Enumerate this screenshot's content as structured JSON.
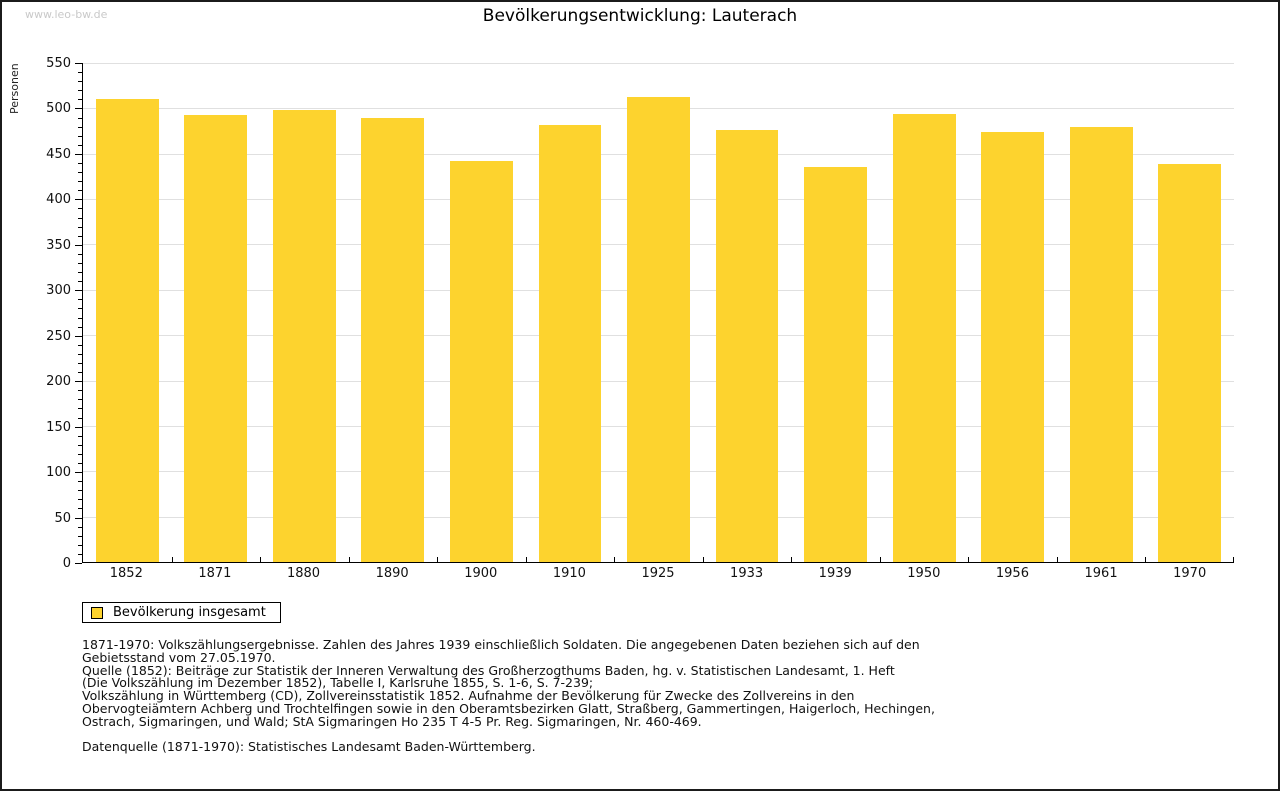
{
  "page": {
    "watermark": "www.leo-bw.de",
    "title": "Bevölkerungsentwicklung: Lauterach"
  },
  "chart_data": {
    "type": "bar",
    "title": "Bevölkerungsentwicklung: Lauterach",
    "xlabel": "",
    "ylabel": "Personen",
    "ylim": [
      0,
      550
    ],
    "y_tick_step": 50,
    "y_minor_tick_step": 10,
    "grid": true,
    "legend_position": "bottom-left",
    "bar_color": "#FDD32E",
    "categories": [
      "1852",
      "1871",
      "1880",
      "1890",
      "1900",
      "1910",
      "1925",
      "1933",
      "1939",
      "1950",
      "1956",
      "1961",
      "1970"
    ],
    "series": [
      {
        "name": "Bevölkerung insgesamt",
        "values": [
          510,
          493,
          498,
          489,
          442,
          482,
          512,
          476,
          435,
          494,
          474,
          480,
          439
        ]
      }
    ]
  },
  "legend": {
    "label": "Bevölkerung insgesamt",
    "swatch_color": "#FDD32E"
  },
  "footer": {
    "lines": [
      "1871-1970: Volkszählungsergebnisse. Zahlen des Jahres 1939 einschließlich Soldaten. Die angegebenen Daten beziehen sich auf den",
      "Gebietsstand vom 27.05.1970.",
      "Quelle (1852): Beiträge zur Statistik der Inneren Verwaltung des Großherzogthums Baden, hg. v. Statistischen Landesamt, 1. Heft",
      "(Die Volkszählung im Dezember 1852), Tabelle I, Karlsruhe 1855, S. 1-6, S. 7-239;",
      "Volkszählung in Württemberg (CD), Zollvereinsstatistik 1852. Aufnahme der Bevölkerung für Zwecke des Zollvereins in den",
      "Obervogteiämtern Achberg und Trochtelfingen sowie in den Oberamtsbezirken Glatt, Straßberg, Gammertingen, Haigerloch, Hechingen,",
      "Ostrach, Sigmaringen, und Wald; StA Sigmaringen Ho 235 T 4-5 Pr. Reg. Sigmaringen, Nr. 460-469.",
      "",
      "Datenquelle (1871-1970): Statistisches Landesamt Baden-Württemberg."
    ]
  }
}
